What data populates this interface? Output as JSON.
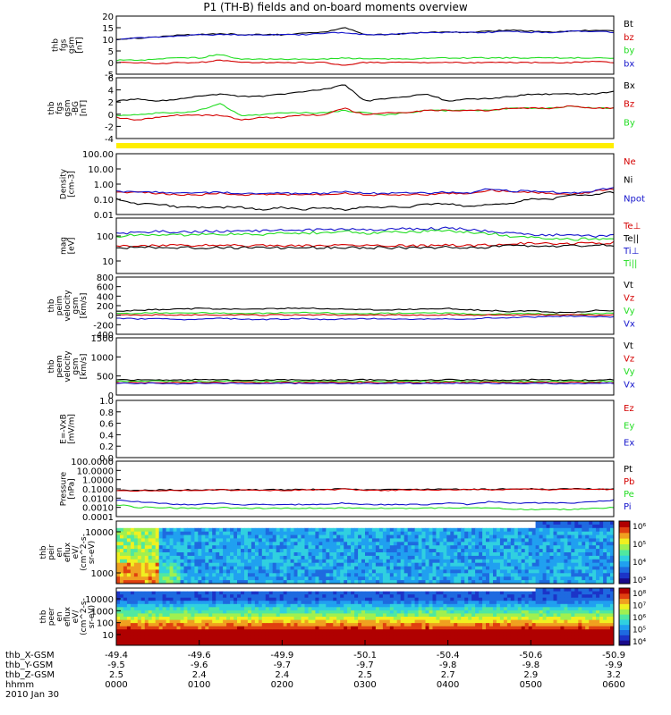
{
  "title": "P1 (TH-B) fields and on-board moments overview",
  "colors": {
    "black": "#000000",
    "red": "#d40000",
    "green": "#22dd22",
    "blue": "#1515cc",
    "yellow": "#ffee00"
  },
  "chart_data": [
    {
      "type": "line",
      "ylabel": [
        "thb",
        "fgs",
        "gsm",
        "[nT]"
      ],
      "ylim": [
        -5,
        20
      ],
      "yticks": [
        "20",
        "15",
        "10",
        "5",
        "0",
        "-5"
      ],
      "legend": [
        "Bt",
        "bz",
        "by",
        "bx"
      ],
      "legend_colors": [
        "black",
        "red",
        "green",
        "blue"
      ],
      "series": [
        {
          "name": "Bt",
          "color": "black",
          "values": [
            10,
            10.5,
            11,
            12,
            12,
            12.5,
            12,
            12,
            12,
            12.5,
            13,
            15,
            12,
            12,
            12.5,
            13,
            13,
            13,
            13.5,
            14,
            13.5,
            13,
            13.5,
            14,
            13.5
          ]
        },
        {
          "name": "bx",
          "color": "blue",
          "values": [
            10,
            10.5,
            11,
            11.5,
            12,
            12,
            12,
            12,
            12,
            12,
            12.5,
            13,
            12,
            12,
            12.5,
            13,
            13,
            13,
            13,
            13.5,
            13,
            13,
            13.5,
            13.5,
            13
          ]
        },
        {
          "name": "by",
          "color": "green",
          "values": [
            1,
            1,
            1.5,
            2,
            2,
            3.5,
            1.5,
            1.5,
            1.5,
            1.5,
            1.5,
            2,
            1.5,
            1.5,
            1.5,
            2,
            2,
            2,
            2,
            2,
            2,
            2,
            2,
            2,
            2
          ]
        },
        {
          "name": "bz",
          "color": "red",
          "values": [
            0,
            0,
            -0.5,
            0,
            0,
            1,
            0,
            0,
            0,
            0,
            0,
            -1,
            0,
            0,
            0,
            0,
            0,
            0,
            0,
            0,
            0,
            0,
            0,
            0.5,
            0
          ]
        }
      ]
    },
    {
      "type": "line",
      "ylabel": [
        "thb",
        "fgs",
        "gsm",
        "-BG",
        "[nT]"
      ],
      "ylim": [
        -5,
        8
      ],
      "yticks": [
        "6",
        "4",
        "2",
        "0",
        "-2",
        "-4"
      ],
      "legend": [
        "Bx",
        "Bz",
        "By"
      ],
      "legend_colors": [
        "black",
        "red",
        "green"
      ],
      "series": [
        {
          "name": "Bx",
          "color": "black",
          "values": [
            3,
            3.5,
            3,
            3.5,
            4,
            4.5,
            4,
            4,
            4.5,
            5,
            5.5,
            6.5,
            3,
            3.5,
            4,
            4.5,
            3,
            3.5,
            3.5,
            4,
            4.5,
            4.5,
            4.5,
            4.5,
            5
          ]
        },
        {
          "name": "By",
          "color": "green",
          "values": [
            0,
            0,
            0.5,
            0.5,
            1,
            2.5,
            0,
            0,
            0.5,
            0.5,
            0.5,
            1,
            0.5,
            0,
            0.5,
            1,
            1,
            1,
            1,
            1.5,
            1.5,
            1.5,
            2,
            1.5,
            1.5
          ]
        },
        {
          "name": "Bz",
          "color": "red",
          "values": [
            -0.5,
            -1,
            -0.5,
            0,
            0,
            0,
            -1,
            -0.5,
            -0.5,
            0,
            0,
            1.5,
            0,
            0.5,
            0.5,
            1,
            1,
            1,
            1,
            1.5,
            1.5,
            1.5,
            2,
            1.5,
            1.5
          ]
        }
      ]
    },
    {
      "type": "line",
      "ylabel": [
        "Density",
        "[cm-3]"
      ],
      "log": true,
      "ylim": [
        0.01,
        100
      ],
      "yticks": [
        "100.00",
        "10.00",
        "1.00",
        "0.10",
        "0.01"
      ],
      "legend": [
        "Ne",
        "Ni",
        "Npot"
      ],
      "legend_colors": [
        "red",
        "black",
        "blue"
      ],
      "series": [
        {
          "name": "Ne",
          "color": "red",
          "values": [
            0.3,
            0.3,
            0.25,
            0.2,
            0.2,
            0.25,
            0.2,
            0.2,
            0.2,
            0.2,
            0.2,
            0.25,
            0.2,
            0.2,
            0.2,
            0.2,
            0.25,
            0.2,
            0.4,
            0.3,
            0.3,
            0.25,
            0.2,
            0.3,
            0.5
          ]
        },
        {
          "name": "Npot",
          "color": "blue",
          "values": [
            0.35,
            0.3,
            0.3,
            0.25,
            0.25,
            0.3,
            0.25,
            0.25,
            0.25,
            0.25,
            0.25,
            0.3,
            0.25,
            0.25,
            0.25,
            0.25,
            0.3,
            0.25,
            0.5,
            0.35,
            0.35,
            0.3,
            0.25,
            0.35,
            0.6
          ]
        },
        {
          "name": "Ni",
          "color": "black",
          "values": [
            0.1,
            0.05,
            0.05,
            0.03,
            0.03,
            0.03,
            0.03,
            0.02,
            0.03,
            0.02,
            0.03,
            0.02,
            0.03,
            0.03,
            0.03,
            0.05,
            0.05,
            0.03,
            0.05,
            0.05,
            0.1,
            0.1,
            0.2,
            0.2,
            0.3
          ]
        }
      ]
    },
    {
      "type": "line",
      "ylabel": [
        "mag",
        "[eV]"
      ],
      "log": true,
      "ylim": [
        3,
        1000
      ],
      "yticks": [
        "100",
        "10"
      ],
      "legend": [
        "Te⊥",
        "Te||",
        "Ti⊥",
        "Ti||"
      ],
      "legend_colors": [
        "red",
        "black",
        "blue",
        "green"
      ],
      "series": [
        {
          "name": "Ti⊥",
          "color": "blue",
          "values": [
            200,
            220,
            250,
            230,
            250,
            260,
            250,
            250,
            270,
            280,
            300,
            320,
            280,
            300,
            320,
            330,
            350,
            300,
            250,
            200,
            180,
            170,
            160,
            150,
            170
          ]
        },
        {
          "name": "Ti||",
          "color": "green",
          "values": [
            150,
            170,
            180,
            170,
            180,
            190,
            180,
            180,
            200,
            210,
            220,
            250,
            210,
            220,
            240,
            250,
            260,
            230,
            200,
            150,
            130,
            120,
            110,
            110,
            120
          ]
        },
        {
          "name": "Te⊥",
          "color": "red",
          "values": [
            55,
            55,
            60,
            55,
            55,
            58,
            55,
            55,
            55,
            55,
            55,
            58,
            55,
            55,
            55,
            55,
            58,
            55,
            60,
            70,
            70,
            70,
            70,
            70,
            75
          ]
        },
        {
          "name": "Te||",
          "color": "black",
          "values": [
            45,
            45,
            48,
            45,
            45,
            46,
            45,
            45,
            45,
            45,
            45,
            46,
            45,
            45,
            45,
            45,
            46,
            45,
            48,
            55,
            55,
            55,
            55,
            55,
            60
          ]
        }
      ]
    },
    {
      "type": "line",
      "ylabel": [
        "thb",
        "peim",
        "velocity",
        "gsm",
        "[km/s]"
      ],
      "ylim": [
        -400,
        800
      ],
      "yticks": [
        "800",
        "600",
        "400",
        "200",
        "0",
        "-200",
        "-400"
      ],
      "legend": [
        "Vt",
        "Vz",
        "Vy",
        "Vx"
      ],
      "legend_colors": [
        "black",
        "red",
        "green",
        "blue"
      ],
      "series": [
        {
          "name": "Vt",
          "color": "black",
          "values": [
            80,
            100,
            120,
            130,
            140,
            130,
            120,
            130,
            140,
            150,
            140,
            130,
            120,
            110,
            120,
            130,
            140,
            110,
            100,
            80,
            90,
            60,
            50,
            100,
            90
          ]
        },
        {
          "name": "Vy",
          "color": "green",
          "values": [
            30,
            40,
            50,
            40,
            50,
            40,
            30,
            40,
            50,
            60,
            50,
            40,
            30,
            40,
            40,
            50,
            40,
            30,
            20,
            30,
            40,
            20,
            10,
            30,
            40
          ]
        },
        {
          "name": "Vz",
          "color": "red",
          "values": [
            10,
            0,
            10,
            0,
            10,
            0,
            10,
            0,
            10,
            0,
            10,
            0,
            10,
            0,
            10,
            0,
            10,
            0,
            10,
            0,
            10,
            0,
            10,
            0,
            10
          ]
        },
        {
          "name": "Vx",
          "color": "blue",
          "values": [
            -60,
            -80,
            -70,
            -90,
            -80,
            -70,
            -80,
            -90,
            -80,
            -70,
            -90,
            -80,
            -70,
            -80,
            -90,
            -80,
            -70,
            -80,
            -60,
            -50,
            -40,
            -30,
            -20,
            -30,
            -40
          ]
        }
      ]
    },
    {
      "type": "line",
      "ylabel": [
        "thb",
        "peem",
        "velocity",
        "gsm",
        "[km/s]"
      ],
      "ylim": [
        -400,
        1500
      ],
      "yticks": [
        "1500",
        "1000",
        "500",
        "0"
      ],
      "legend": [
        "Vt",
        "Vz",
        "Vy",
        "Vx"
      ],
      "legend_colors": [
        "black",
        "red",
        "green",
        "blue"
      ],
      "series": [
        {
          "name": "Vt",
          "color": "black",
          "values": [
            100,
            100,
            90,
            100,
            110,
            100,
            90,
            100,
            110,
            100,
            90,
            100,
            110,
            100,
            90,
            100,
            110,
            100,
            90,
            100,
            110,
            100,
            90,
            100,
            110
          ]
        },
        {
          "name": "Vy",
          "color": "green",
          "values": [
            60,
            50,
            60,
            50,
            60,
            50,
            60,
            50,
            60,
            50,
            60,
            50,
            60,
            50,
            60,
            50,
            60,
            50,
            60,
            50,
            60,
            50,
            60,
            50,
            60
          ]
        },
        {
          "name": "Vz",
          "color": "red",
          "values": [
            20,
            10,
            20,
            10,
            20,
            10,
            20,
            10,
            20,
            10,
            20,
            10,
            20,
            10,
            20,
            10,
            20,
            10,
            20,
            10,
            20,
            10,
            20,
            10,
            20
          ]
        },
        {
          "name": "Vx",
          "color": "blue",
          "values": [
            -10,
            -20,
            -10,
            -20,
            -10,
            -20,
            -10,
            -20,
            -10,
            -20,
            -10,
            -20,
            -10,
            -20,
            -10,
            -20,
            -10,
            -20,
            -10,
            -20,
            -10,
            -20,
            -10,
            -20,
            -10
          ]
        }
      ]
    },
    {
      "type": "line",
      "ylabel": [
        "E=-VxB",
        "[mV/m]"
      ],
      "ylim": [
        0,
        1
      ],
      "yticks": [
        "1.0",
        "0.8",
        "0.6",
        "0.4",
        "0.2",
        "0.0"
      ],
      "legend": [
        "Ez",
        "Ey",
        "Ex"
      ],
      "legend_colors": [
        "red",
        "green",
        "blue"
      ],
      "series": []
    },
    {
      "type": "line",
      "ylabel": [
        "Pressure",
        "[nPa]"
      ],
      "log": true,
      "ylim": [
        0.0001,
        100
      ],
      "yticks": [
        "100.0000",
        "10.0000",
        "1.0000",
        "0.1000",
        "0.0100",
        "0.0010",
        "0.0001"
      ],
      "legend": [
        "Pt",
        "Pb",
        "Pe",
        "Pi"
      ],
      "legend_colors": [
        "black",
        "red",
        "green",
        "blue"
      ],
      "series": [
        {
          "name": "Pt",
          "color": "black",
          "values": [
            0.07,
            0.07,
            0.075,
            0.08,
            0.08,
            0.085,
            0.08,
            0.08,
            0.08,
            0.085,
            0.09,
            0.1,
            0.08,
            0.08,
            0.085,
            0.09,
            0.09,
            0.09,
            0.09,
            0.1,
            0.1,
            0.09,
            0.1,
            0.1,
            0.1
          ]
        },
        {
          "name": "Pb",
          "color": "red",
          "values": [
            0.06,
            0.06,
            0.065,
            0.07,
            0.07,
            0.075,
            0.07,
            0.07,
            0.07,
            0.075,
            0.08,
            0.09,
            0.07,
            0.07,
            0.075,
            0.08,
            0.08,
            0.08,
            0.08,
            0.09,
            0.09,
            0.08,
            0.09,
            0.09,
            0.09
          ]
        },
        {
          "name": "Pi",
          "color": "blue",
          "values": [
            0.006,
            0.004,
            0.003,
            0.002,
            0.002,
            0.003,
            0.002,
            0.002,
            0.002,
            0.002,
            0.002,
            0.003,
            0.002,
            0.002,
            0.002,
            0.002,
            0.003,
            0.002,
            0.004,
            0.003,
            0.003,
            0.003,
            0.003,
            0.004,
            0.006
          ]
        },
        {
          "name": "Pe",
          "color": "green",
          "values": [
            0.002,
            0.001,
            0.001,
            0.0008,
            0.0008,
            0.0009,
            0.0008,
            0.0008,
            0.0008,
            0.0008,
            0.0008,
            0.0009,
            0.0008,
            0.0008,
            0.0008,
            0.0008,
            0.0009,
            0.0008,
            0.001,
            0.0006,
            0.0006,
            0.0006,
            0.0006,
            0.0008,
            0.001
          ]
        }
      ]
    },
    {
      "type": "heatmap",
      "ylabel": [
        "thb",
        "peir",
        "en",
        "eflux",
        "eV/",
        "(cm^2-s-",
        "sr-eV)"
      ],
      "log": true,
      "ylim": [
        100,
        20000
      ],
      "yticks": [
        "10000",
        "1000"
      ],
      "colorbar_ticks": [
        "10^6",
        "10^5",
        "10^4",
        "10^3"
      ]
    },
    {
      "type": "heatmap",
      "ylabel": [
        "thb",
        "peer",
        "en",
        "eflux",
        "eV/",
        "(cm^2-s-",
        "sr-eV)"
      ],
      "log": true,
      "ylim": [
        5,
        20000
      ],
      "yticks": [
        "10000",
        "1000",
        "100",
        "10"
      ],
      "colorbar_ticks": [
        "10^8",
        "10^7",
        "10^6",
        "10^5",
        "10^4"
      ]
    }
  ],
  "footer": {
    "rows": [
      {
        "label": "thb_X-GSM",
        "values": [
          "-49.4",
          "-49.6",
          "-49.9",
          "-50.1",
          "-50.4",
          "-50.6",
          "-50.9"
        ]
      },
      {
        "label": "thb_Y-GSM",
        "values": [
          "-9.5",
          "-9.6",
          "-9.7",
          "-9.7",
          "-9.8",
          "-9.8",
          "-9.9"
        ]
      },
      {
        "label": "thb_Z-GSM",
        "values": [
          "2.5",
          "2.4",
          "2.4",
          "2.5",
          "2.7",
          "2.9",
          "3.2"
        ]
      },
      {
        "label": "hhmm",
        "values": [
          "0000",
          "0100",
          "0200",
          "0300",
          "0400",
          "0500",
          "0600"
        ]
      }
    ],
    "date": "2010 Jan 30"
  }
}
